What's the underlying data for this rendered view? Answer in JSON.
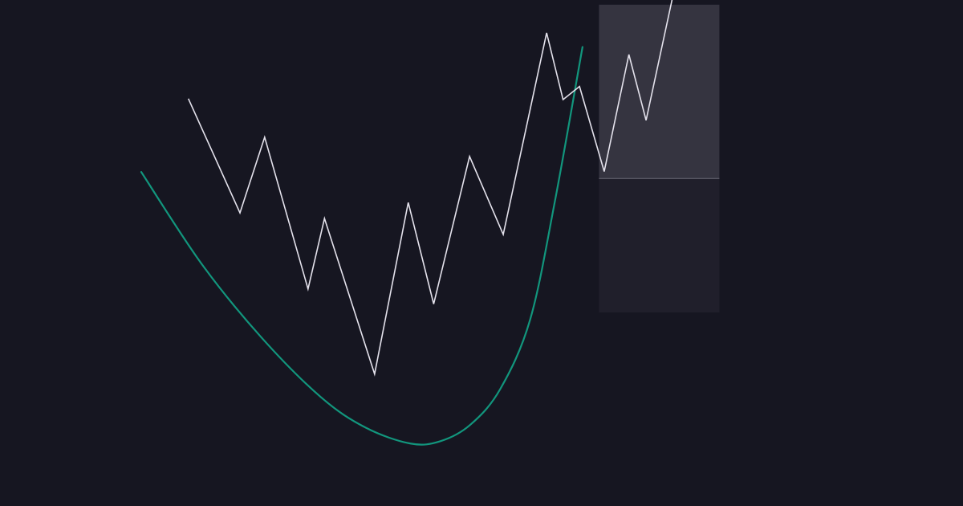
{
  "colors": {
    "background": "#161621",
    "price_line": "#e4e2ec",
    "curve_line": "#12967d",
    "box_upper": "#353440",
    "box_lower": "#201f2b",
    "box_divider": "#6c6b78"
  },
  "chart_data": {
    "type": "line",
    "xlim": [
      0,
      100
    ],
    "ylim": [
      0,
      100
    ],
    "grid": false,
    "series": [
      {
        "role": "price",
        "style": "zigzag",
        "arrow_at_end": true,
        "points": [
          [
            6.3,
            79.0
          ],
          [
            13.2,
            54.7
          ],
          [
            16.5,
            70.8
          ],
          [
            22.3,
            38.5
          ],
          [
            24.5,
            53.5
          ],
          [
            31.2,
            20.4
          ],
          [
            35.7,
            56.9
          ],
          [
            39.1,
            35.3
          ],
          [
            43.9,
            66.7
          ],
          [
            48.4,
            50.1
          ],
          [
            54.2,
            93.0
          ],
          [
            56.4,
            78.8
          ],
          [
            58.6,
            81.6
          ],
          [
            61.9,
            63.5
          ],
          [
            65.2,
            88.4
          ],
          [
            67.5,
            74.4
          ],
          [
            73.4,
            118.0
          ]
        ]
      },
      {
        "role": "trend",
        "style": "smooth-curve",
        "points": [
          [
            0.0,
            63.4
          ],
          [
            8.0,
            44.0
          ],
          [
            16.0,
            28.3
          ],
          [
            24.0,
            15.5
          ],
          [
            30.0,
            9.0
          ],
          [
            36.0,
            5.6
          ],
          [
            40.0,
            6.1
          ],
          [
            44.0,
            9.6
          ],
          [
            48.0,
            17.2
          ],
          [
            52.0,
            32.0
          ],
          [
            55.3,
            57.1
          ],
          [
            59.0,
            90.0
          ]
        ]
      }
    ],
    "highlight_region": {
      "x_range": [
        61.2,
        77.3
      ],
      "upper_y_range": [
        62.0,
        99.0
      ],
      "lower_y_range": [
        33.5,
        62.0
      ]
    }
  }
}
